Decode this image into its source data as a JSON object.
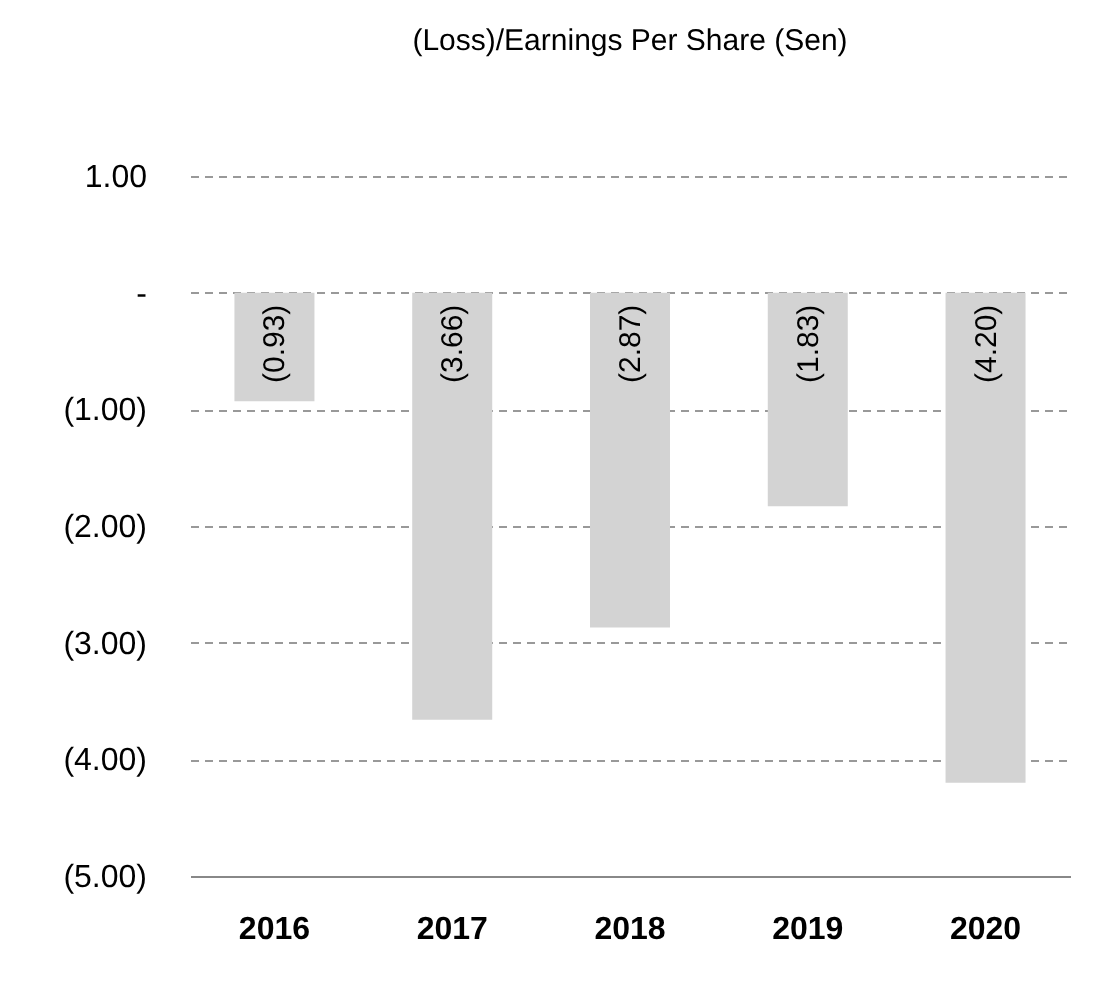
{
  "chart_data": {
    "type": "bar",
    "title": "(Loss)/Earnings Per Share (Sen)",
    "categories": [
      "2016",
      "2017",
      "2018",
      "2019",
      "2020"
    ],
    "values": [
      -0.93,
      -3.66,
      -2.87,
      -1.83,
      -4.2
    ],
    "value_labels": [
      "(0.93)",
      "(3.66)",
      "(2.87)",
      "(1.83)",
      "(4.20)"
    ],
    "color": "#d3d3d3",
    "ylim": [
      -5,
      1
    ],
    "yticks": [
      {
        "value": 1,
        "label": "1.00"
      },
      {
        "value": 0,
        "label": "-"
      },
      {
        "value": -1,
        "label": "(1.00)"
      },
      {
        "value": -2,
        "label": "(2.00)"
      },
      {
        "value": -3,
        "label": "(3.00)"
      },
      {
        "value": -4,
        "label": "(4.00)"
      },
      {
        "value": -5,
        "label": "(5.00)"
      }
    ],
    "grid": "y"
  }
}
